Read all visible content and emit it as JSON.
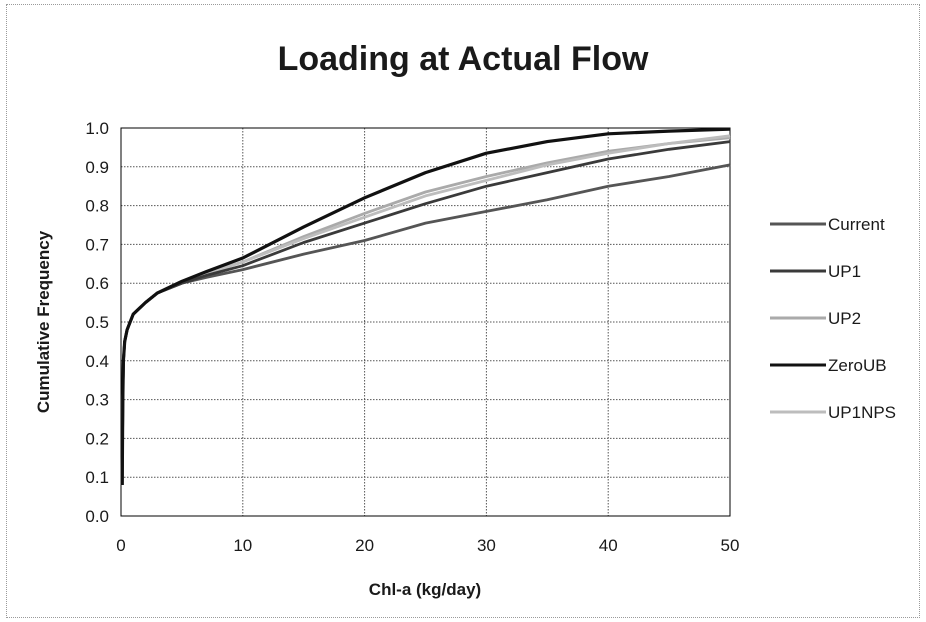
{
  "chart_data": {
    "type": "line",
    "title": "Loading at Actual Flow",
    "xlabel": "Chl-a (kg/day)",
    "ylabel": "Cumulative Frequency",
    "xlim": [
      0,
      50
    ],
    "ylim": [
      0,
      1.0
    ],
    "x_ticks": [
      "0",
      "10",
      "20",
      "30",
      "40",
      "50"
    ],
    "y_ticks": [
      "0.0",
      "0.1",
      "0.2",
      "0.3",
      "0.4",
      "0.5",
      "0.6",
      "0.7",
      "0.8",
      "0.9",
      "1.0"
    ],
    "grid": true,
    "legend": "right",
    "series": [
      {
        "name": "Current",
        "color": "#555555",
        "x": [
          0.1,
          0.15,
          0.2,
          0.3,
          0.5,
          1,
          2,
          3,
          5,
          7,
          10,
          15,
          20,
          25,
          30,
          35,
          40,
          45,
          50
        ],
        "y": [
          0.08,
          0.3,
          0.4,
          0.45,
          0.48,
          0.52,
          0.55,
          0.575,
          0.6,
          0.615,
          0.635,
          0.675,
          0.71,
          0.755,
          0.785,
          0.815,
          0.85,
          0.875,
          0.905
        ]
      },
      {
        "name": "UP1",
        "color": "#3a3a3a",
        "x": [
          0.1,
          0.15,
          0.2,
          0.3,
          0.5,
          1,
          2,
          3,
          5,
          7,
          10,
          15,
          20,
          25,
          30,
          35,
          40,
          45,
          50
        ],
        "y": [
          0.08,
          0.3,
          0.4,
          0.45,
          0.48,
          0.52,
          0.55,
          0.575,
          0.6,
          0.62,
          0.645,
          0.705,
          0.755,
          0.805,
          0.85,
          0.885,
          0.92,
          0.945,
          0.965
        ]
      },
      {
        "name": "UP2",
        "color": "#aaaaaa",
        "x": [
          0.1,
          0.15,
          0.2,
          0.3,
          0.5,
          1,
          2,
          3,
          5,
          7,
          10,
          15,
          20,
          25,
          30,
          35,
          40,
          45,
          50
        ],
        "y": [
          0.08,
          0.3,
          0.4,
          0.45,
          0.48,
          0.52,
          0.55,
          0.575,
          0.605,
          0.625,
          0.655,
          0.72,
          0.78,
          0.835,
          0.875,
          0.91,
          0.94,
          0.96,
          0.975
        ]
      },
      {
        "name": "ZeroUB",
        "color": "#111111",
        "x": [
          0.1,
          0.15,
          0.2,
          0.3,
          0.5,
          1,
          2,
          3,
          5,
          7,
          10,
          15,
          20,
          25,
          30,
          35,
          40,
          45,
          50
        ],
        "y": [
          0.08,
          0.3,
          0.4,
          0.45,
          0.48,
          0.52,
          0.55,
          0.575,
          0.605,
          0.63,
          0.665,
          0.745,
          0.82,
          0.885,
          0.935,
          0.965,
          0.985,
          0.992,
          0.997
        ]
      },
      {
        "name": "UP1NPS",
        "color": "#bdbdbd",
        "x": [
          0.1,
          0.15,
          0.2,
          0.3,
          0.5,
          1,
          2,
          3,
          5,
          7,
          10,
          15,
          20,
          25,
          30,
          35,
          40,
          45,
          50
        ],
        "y": [
          0.08,
          0.3,
          0.4,
          0.45,
          0.48,
          0.52,
          0.55,
          0.575,
          0.605,
          0.625,
          0.655,
          0.715,
          0.77,
          0.825,
          0.865,
          0.905,
          0.935,
          0.96,
          0.98
        ]
      }
    ]
  }
}
